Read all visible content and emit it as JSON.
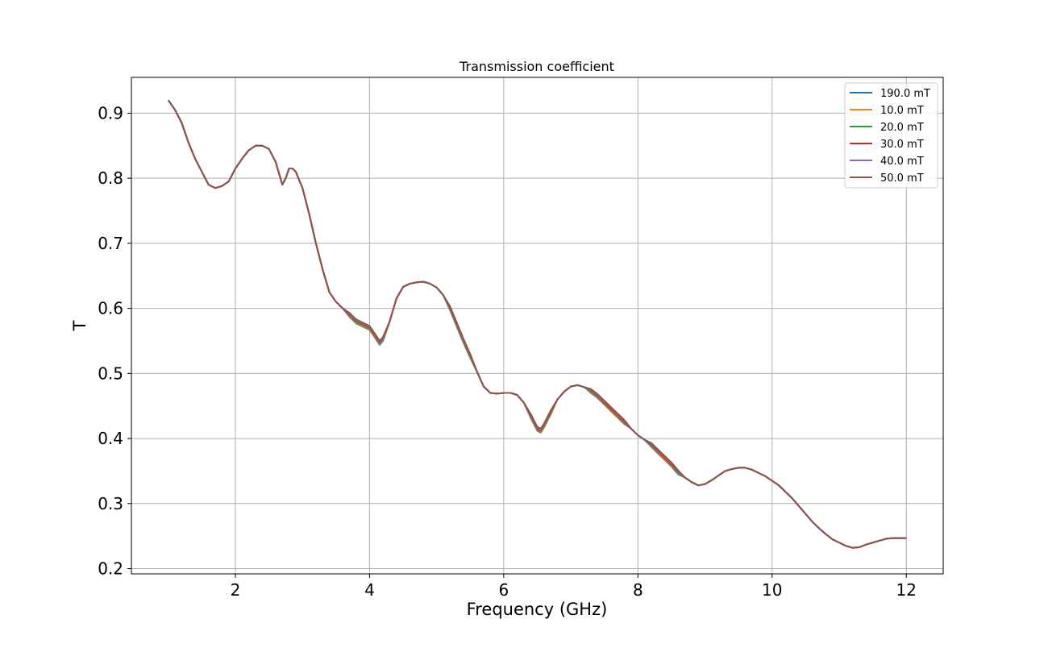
{
  "chart_data": {
    "type": "line",
    "title": "Transmission coefficient",
    "xlabel": "Frequency (GHz)",
    "ylabel": "T",
    "xlim": [
      0.45,
      12.55
    ],
    "ylim": [
      0.192,
      0.955
    ],
    "x_ticks": [
      2,
      4,
      6,
      8,
      10,
      12
    ],
    "y_ticks": [
      0.2,
      0.3,
      0.4,
      0.5,
      0.6,
      0.7,
      0.8,
      0.9
    ],
    "grid": true,
    "legend_position": "top-right",
    "series": [
      {
        "name": "190.0 mT",
        "color": "#1f77b4"
      },
      {
        "name": "10.0 mT",
        "color": "#ff7f0e"
      },
      {
        "name": "20.0 mT",
        "color": "#2ca02c"
      },
      {
        "name": "30.0 mT",
        "color": "#d62728"
      },
      {
        "name": "40.0 mT",
        "color": "#9467bd"
      },
      {
        "name": "50.0 mT",
        "color": "#8c564b"
      }
    ],
    "x": [
      1.0,
      1.1,
      1.2,
      1.3,
      1.4,
      1.5,
      1.6,
      1.7,
      1.8,
      1.9,
      2.0,
      2.1,
      2.2,
      2.3,
      2.4,
      2.5,
      2.6,
      2.7,
      2.75,
      2.8,
      2.85,
      2.9,
      3.0,
      3.1,
      3.2,
      3.3,
      3.4,
      3.5,
      3.6,
      3.7,
      3.8,
      3.9,
      4.0,
      4.1,
      4.15,
      4.2,
      4.3,
      4.4,
      4.5,
      4.6,
      4.7,
      4.8,
      4.9,
      5.0,
      5.1,
      5.2,
      5.3,
      5.4,
      5.5,
      5.6,
      5.7,
      5.8,
      5.9,
      6.0,
      6.1,
      6.2,
      6.3,
      6.4,
      6.5,
      6.55,
      6.6,
      6.7,
      6.8,
      6.9,
      7.0,
      7.1,
      7.2,
      7.3,
      7.4,
      7.5,
      7.6,
      7.7,
      7.8,
      7.9,
      8.0,
      8.1,
      8.2,
      8.3,
      8.4,
      8.5,
      8.6,
      8.7,
      8.8,
      8.9,
      9.0,
      9.1,
      9.2,
      9.3,
      9.4,
      9.5,
      9.6,
      9.7,
      9.8,
      9.9,
      10.0,
      10.1,
      10.2,
      10.3,
      10.4,
      10.5,
      10.6,
      10.7,
      10.8,
      10.9,
      11.0,
      11.1,
      11.2,
      11.3,
      11.4,
      11.5,
      11.6,
      11.7,
      11.8,
      11.9,
      12.0
    ],
    "y": [
      0.92,
      0.905,
      0.885,
      0.855,
      0.83,
      0.81,
      0.79,
      0.785,
      0.788,
      0.795,
      0.815,
      0.83,
      0.843,
      0.85,
      0.85,
      0.845,
      0.825,
      0.79,
      0.8,
      0.815,
      0.815,
      0.81,
      0.785,
      0.745,
      0.7,
      0.66,
      0.625,
      0.61,
      0.6,
      0.59,
      0.58,
      0.575,
      0.57,
      0.555,
      0.547,
      0.553,
      0.58,
      0.615,
      0.633,
      0.638,
      0.64,
      0.641,
      0.638,
      0.632,
      0.62,
      0.6,
      0.575,
      0.55,
      0.527,
      0.503,
      0.48,
      0.47,
      0.469,
      0.47,
      0.47,
      0.467,
      0.455,
      0.435,
      0.415,
      0.412,
      0.42,
      0.44,
      0.46,
      0.472,
      0.48,
      0.482,
      0.479,
      0.473,
      0.465,
      0.455,
      0.445,
      0.435,
      0.425,
      0.415,
      0.405,
      0.398,
      0.39,
      0.38,
      0.37,
      0.36,
      0.348,
      0.34,
      0.333,
      0.328,
      0.33,
      0.336,
      0.343,
      0.35,
      0.353,
      0.355,
      0.355,
      0.352,
      0.347,
      0.342,
      0.335,
      0.328,
      0.318,
      0.308,
      0.296,
      0.284,
      0.272,
      0.262,
      0.253,
      0.245,
      0.24,
      0.235,
      0.232,
      0.233,
      0.237,
      0.24,
      0.243,
      0.246,
      0.247,
      0.247,
      0.247
    ]
  }
}
